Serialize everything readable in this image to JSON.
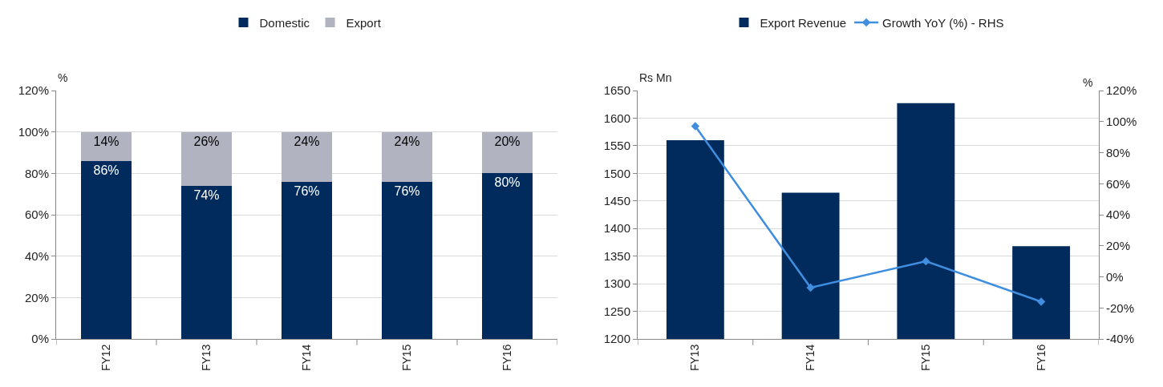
{
  "chart_data": [
    {
      "type": "bar",
      "stacked": true,
      "ylabel": "%",
      "categories": [
        "FY12",
        "FY13",
        "FY14",
        "FY15",
        "FY16"
      ],
      "series": [
        {
          "name": "Domestic",
          "color": "#002b5c",
          "values": [
            86,
            74,
            76,
            76,
            80
          ],
          "value_labels": [
            "86%",
            "74%",
            "76%",
            "76%",
            "80%"
          ]
        },
        {
          "name": "Export",
          "color": "#b1b3c0",
          "values": [
            14,
            26,
            24,
            24,
            20
          ],
          "value_labels": [
            "14%",
            "26%",
            "24%",
            "24%",
            "20%"
          ]
        }
      ],
      "ylim": [
        0,
        120
      ],
      "yticks": [
        {
          "value": 0,
          "label": "0%"
        },
        {
          "value": 20,
          "label": "20%"
        },
        {
          "value": 40,
          "label": "40%"
        },
        {
          "value": 60,
          "label": "60%"
        },
        {
          "value": 80,
          "label": "80%"
        },
        {
          "value": 100,
          "label": "100%"
        },
        {
          "value": 120,
          "label": "120%"
        }
      ],
      "grid": "y",
      "legend": "top"
    },
    {
      "type": "bar",
      "ylabel": "Rs Mn",
      "y2label": "%",
      "categories": [
        "FY13",
        "FY14",
        "FY15",
        "FY16"
      ],
      "series": [
        {
          "name": "Export Revenue",
          "color": "#002b5c",
          "values": [
            1560,
            1465,
            1627,
            1368
          ]
        },
        {
          "name": "Growth YoY (%) - RHS",
          "type": "line",
          "axis": "y2",
          "color": "#3f8ee0",
          "values": [
            97,
            -7,
            10,
            -16
          ],
          "marker": "diamond"
        }
      ],
      "ylim": [
        1200,
        1650
      ],
      "yticks": [
        1200,
        1250,
        1300,
        1350,
        1400,
        1450,
        1500,
        1550,
        1600,
        1650
      ],
      "y2lim": [
        -40,
        120
      ],
      "y2ticks": [
        {
          "value": -40,
          "label": "-40%"
        },
        {
          "value": -20,
          "label": "-20%"
        },
        {
          "value": 0,
          "label": "0%"
        },
        {
          "value": 20,
          "label": "20%"
        },
        {
          "value": 40,
          "label": "40%"
        },
        {
          "value": 60,
          "label": "60%"
        },
        {
          "value": 80,
          "label": "80%"
        },
        {
          "value": 100,
          "label": "100%"
        },
        {
          "value": 120,
          "label": "120%"
        }
      ],
      "grid": "y",
      "legend": "top"
    }
  ]
}
